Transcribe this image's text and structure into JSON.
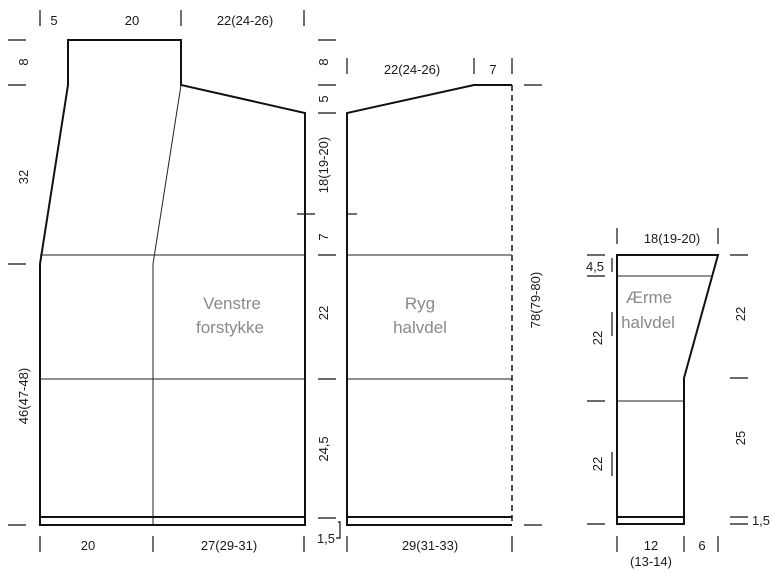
{
  "pieces": {
    "front": {
      "label_line1": "Venstre",
      "label_line2": "forstykke"
    },
    "back": {
      "label_line1": "Ryg",
      "label_line2": "halvdel"
    },
    "sleeve": {
      "label_line1": "Ærme",
      "label_line2": "halvdel"
    }
  },
  "front_dims": {
    "top_left": "5",
    "top_mid": "20",
    "top_right": "22(24-26)",
    "left_8": "8",
    "left_32": "32",
    "left_46": "46(47-48)",
    "bottom_left": "20",
    "bottom_right": "27(29-31)"
  },
  "back_dims": {
    "top_right": "7",
    "top_left": "22(24-26)",
    "left_8": "8",
    "left_5": "5",
    "left_18": "18(19-20)",
    "left_7": "7",
    "left_22": "22",
    "left_24_5": "24,5",
    "left_1_5": "1,5",
    "bottom": "29(31-33)",
    "right_78": "78(79-80)"
  },
  "sleeve_dims": {
    "top": "18(19-20)",
    "left_4_5": "4,5",
    "left_22a": "22",
    "left_22b": "22",
    "right_22": "22",
    "right_25": "25",
    "right_1_5": "1,5",
    "bottom_12": "12",
    "bottom_12_alt": "(13-14)",
    "bottom_6": "6"
  }
}
